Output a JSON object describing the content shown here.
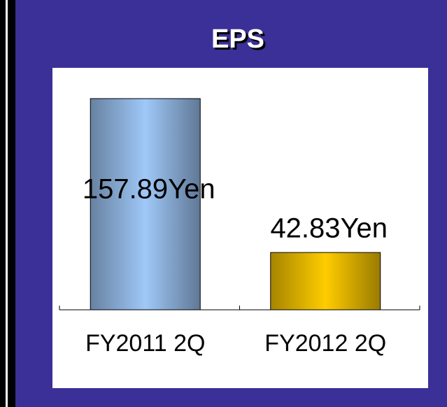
{
  "chart_data": {
    "type": "bar",
    "title": "EPS",
    "categories": [
      "FY2011 2Q",
      "FY2012 2Q"
    ],
    "values": [
      157.89,
      42.83
    ],
    "value_labels": [
      "157.89Yen",
      "42.83Yen"
    ],
    "colors": [
      "#9fc8f8",
      "#ffcc00"
    ]
  }
}
